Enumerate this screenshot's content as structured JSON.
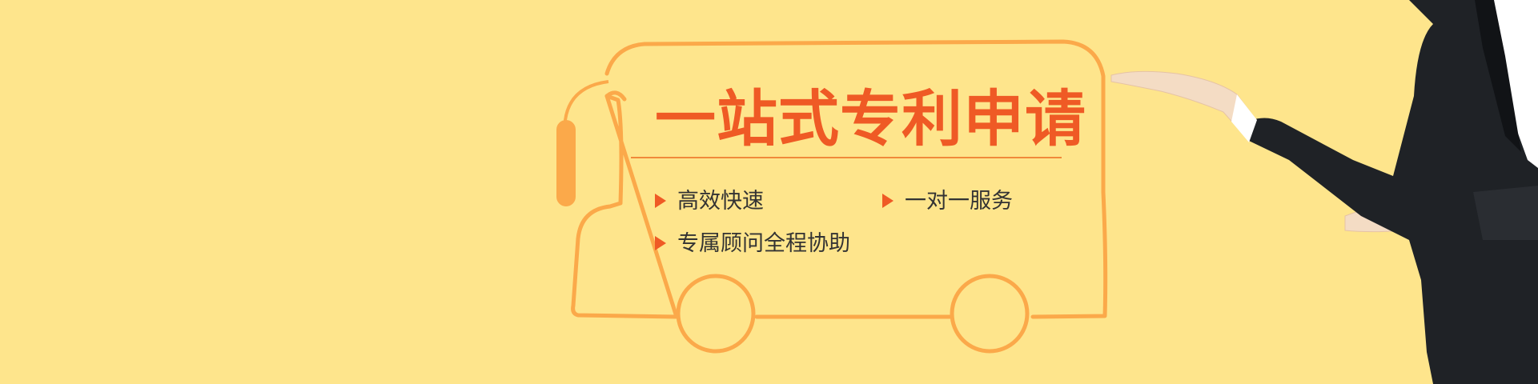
{
  "banner": {
    "title": "一站式专利申请",
    "features": [
      "高效快速",
      "一对一服务",
      "专属顾问全程协助"
    ]
  },
  "colors": {
    "background": "#fee58c",
    "bus_outline": "#fba94a",
    "title": "#ef5a25",
    "bullet_arrow": "#ef5a25",
    "feature_text": "#333333"
  },
  "icons": {
    "bullet": "right-triangle-icon",
    "illustration": "bus-outline-icon"
  }
}
